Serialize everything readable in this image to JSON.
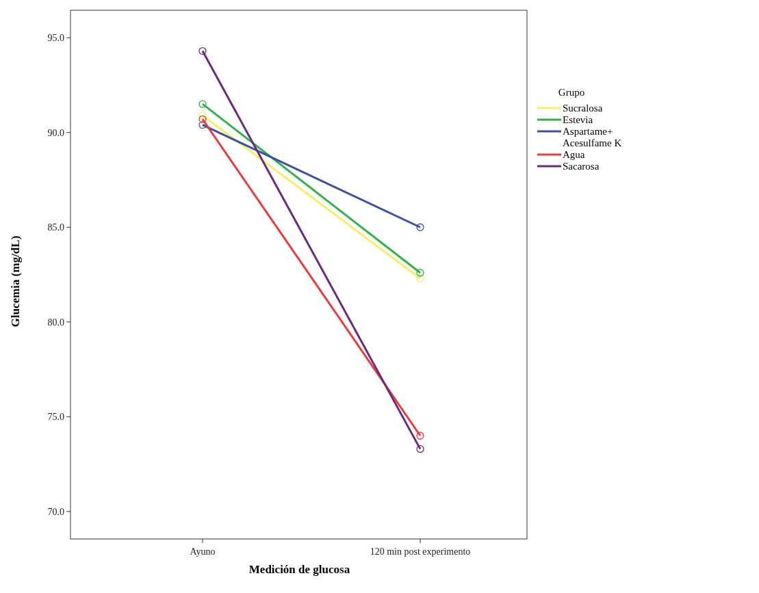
{
  "chart_data": {
    "type": "line",
    "xlabel": "Medición de glucosa",
    "ylabel": "Glucemia (mg/dL)",
    "legend_title": "Grupo",
    "categories": [
      "Ayuno",
      "120 min post experimento"
    ],
    "series": [
      {
        "name": "Sucralosa",
        "color": "#f5f065",
        "values": [
          90.9,
          82.3
        ]
      },
      {
        "name": "Estevia",
        "color": "#2eb34a",
        "values": [
          91.5,
          82.6
        ]
      },
      {
        "name": "Aspartame+ Acesulfame K",
        "color": "#3a50a8",
        "values": [
          90.4,
          85.0
        ]
      },
      {
        "name": "Agua",
        "color": "#ec3a3a",
        "values": [
          90.7,
          74.0
        ]
      },
      {
        "name": "Sacarosa",
        "color": "#6a2a7e",
        "values": [
          94.3,
          73.3
        ]
      }
    ],
    "ylim": [
      68.55,
      96.45
    ],
    "yticks": [
      {
        "value": 70,
        "label": "70.0"
      },
      {
        "value": 75,
        "label": "75.0"
      },
      {
        "value": 80,
        "label": "80.0"
      },
      {
        "value": 85,
        "label": "85.0"
      },
      {
        "value": 90,
        "label": "90.0"
      },
      {
        "value": 95,
        "label": "95.0"
      }
    ],
    "marker": "circle",
    "legend": "right",
    "grid": false
  }
}
